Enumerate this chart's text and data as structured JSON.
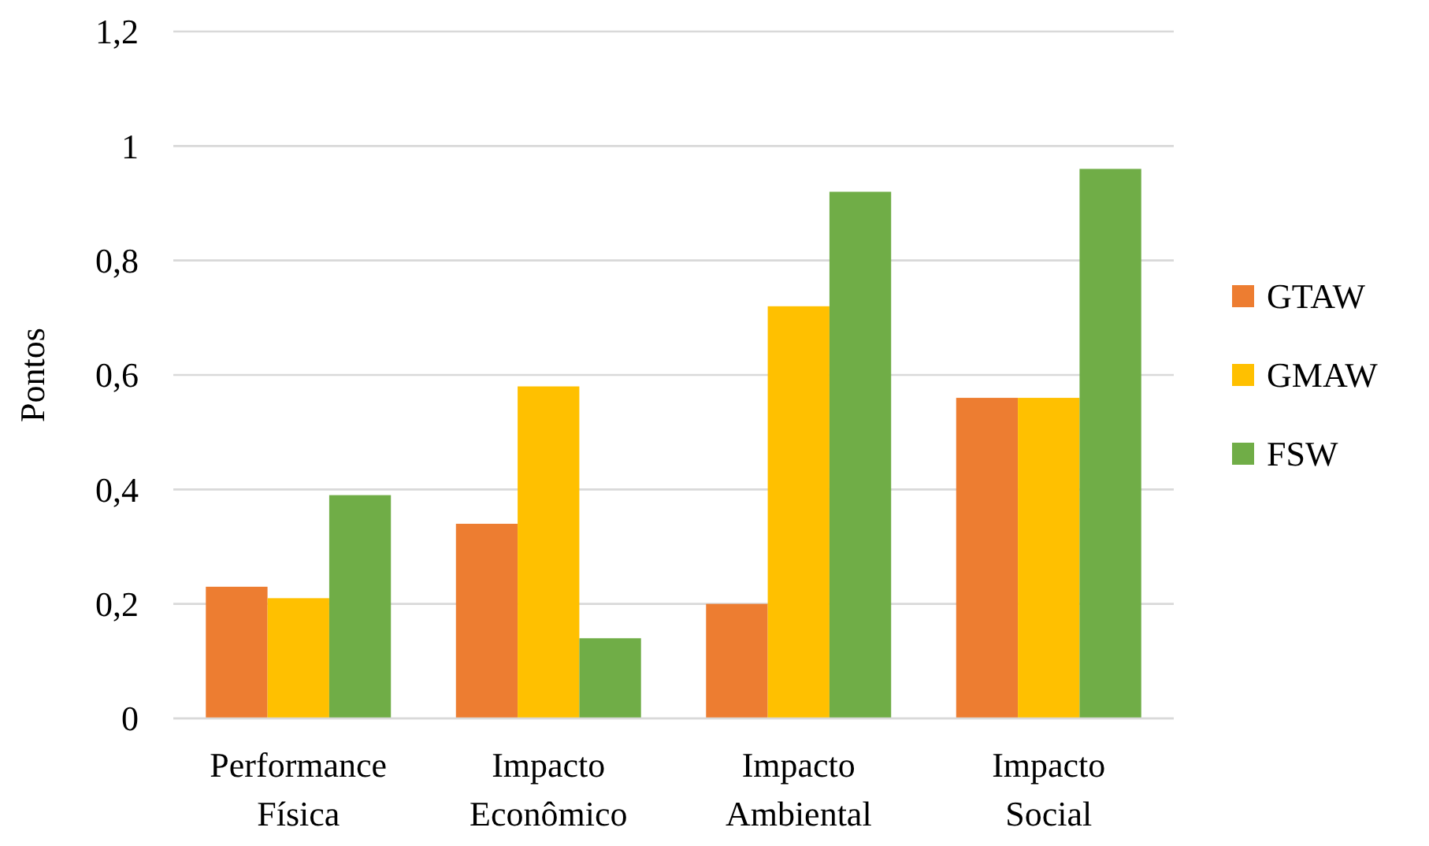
{
  "chart_data": {
    "type": "bar",
    "ylabel": "Pontos",
    "categories": [
      "Performance\nFísica",
      "Impacto\nEconômico",
      "Impacto\nAmbiental",
      "Impacto\nSocial"
    ],
    "series": [
      {
        "name": "GTAW",
        "color": "#ed7d31",
        "values": [
          0.23,
          0.34,
          0.2,
          0.56
        ]
      },
      {
        "name": "GMAW",
        "color": "#ffc000",
        "values": [
          0.21,
          0.58,
          0.72,
          0.56
        ]
      },
      {
        "name": "FSW",
        "color": "#70ad47",
        "values": [
          0.39,
          0.14,
          0.92,
          0.96
        ]
      }
    ],
    "ylim": [
      0,
      1.2
    ],
    "yticks": [
      {
        "value": 0,
        "label": "0"
      },
      {
        "value": 0.2,
        "label": "0,2"
      },
      {
        "value": 0.4,
        "label": "0,4"
      },
      {
        "value": 0.6,
        "label": "0,6"
      },
      {
        "value": 0.8,
        "label": "0,8"
      },
      {
        "value": 1,
        "label": "1"
      },
      {
        "value": 1.2,
        "label": "1,2"
      }
    ],
    "grid": "y",
    "legend": "right"
  }
}
